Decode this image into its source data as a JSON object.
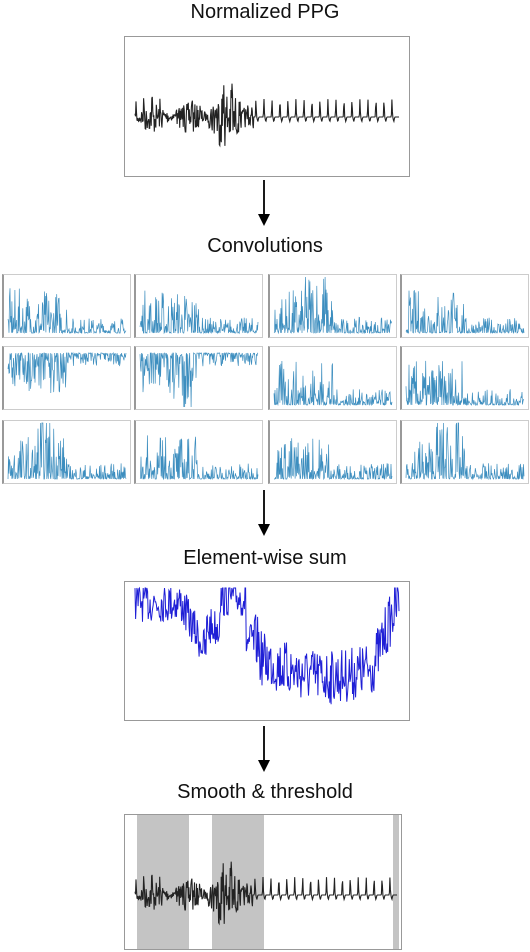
{
  "stages": {
    "normalized": {
      "title": "Normalized PPG"
    },
    "convolutions": {
      "title": "Convolutions",
      "panel_count": 12
    },
    "sum": {
      "title": "Element-wise sum"
    },
    "threshold": {
      "title": "Smooth & threshold"
    }
  },
  "colors": {
    "ppg_line": "#222222",
    "conv_line": "#3d8ebf",
    "sum_line": "#1f1fd6",
    "mask_fill": "#c4c4c4",
    "frame": "#999999",
    "arrow": "#000000"
  }
}
